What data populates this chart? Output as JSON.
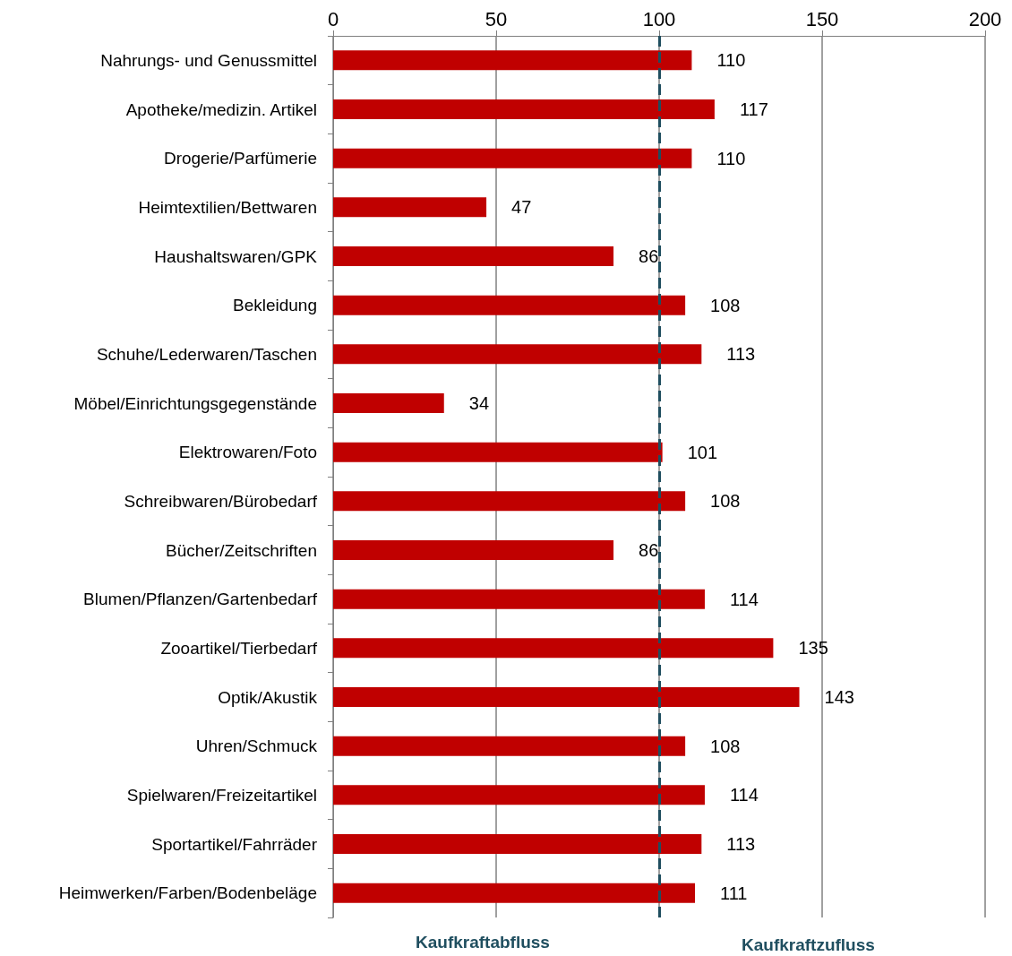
{
  "chart_data": {
    "type": "bar",
    "orientation": "horizontal",
    "categories": [
      "Nahrungs- und Genussmittel",
      "Apotheke/medizin. Artikel",
      "Drogerie/Parfümerie",
      "Heimtextilien/Bettwaren",
      "Haushaltswaren/GPK",
      "Bekleidung",
      "Schuhe/Lederwaren/Taschen",
      "Möbel/Einrichtungsgegenstände",
      "Elektrowaren/Foto",
      "Schreibwaren/Bürobedarf",
      "Bücher/Zeitschriften",
      "Blumen/Pflanzen/Gartenbedarf",
      "Zooartikel/Tierbedarf",
      "Optik/Akustik",
      "Uhren/Schmuck",
      "Spielwaren/Freizeitartikel",
      "Sportartikel/Fahrräder",
      "Heimwerken/Farben/Bodenbeläge"
    ],
    "values": [
      110,
      117,
      110,
      47,
      86,
      108,
      113,
      34,
      101,
      108,
      86,
      114,
      135,
      143,
      108,
      114,
      113,
      111
    ],
    "color": "#c00000",
    "data_labels": true,
    "xlim": [
      0,
      200
    ],
    "xticks": [
      0,
      50,
      100,
      150,
      200
    ],
    "grid": "x",
    "ref_lines": [
      {
        "axis": "x",
        "value": 100,
        "color": "#1f4e5f",
        "line_style": "dashed"
      }
    ],
    "annotations": [
      "Kaufkraftabfluss",
      "Kaufkraftzufluss"
    ]
  }
}
